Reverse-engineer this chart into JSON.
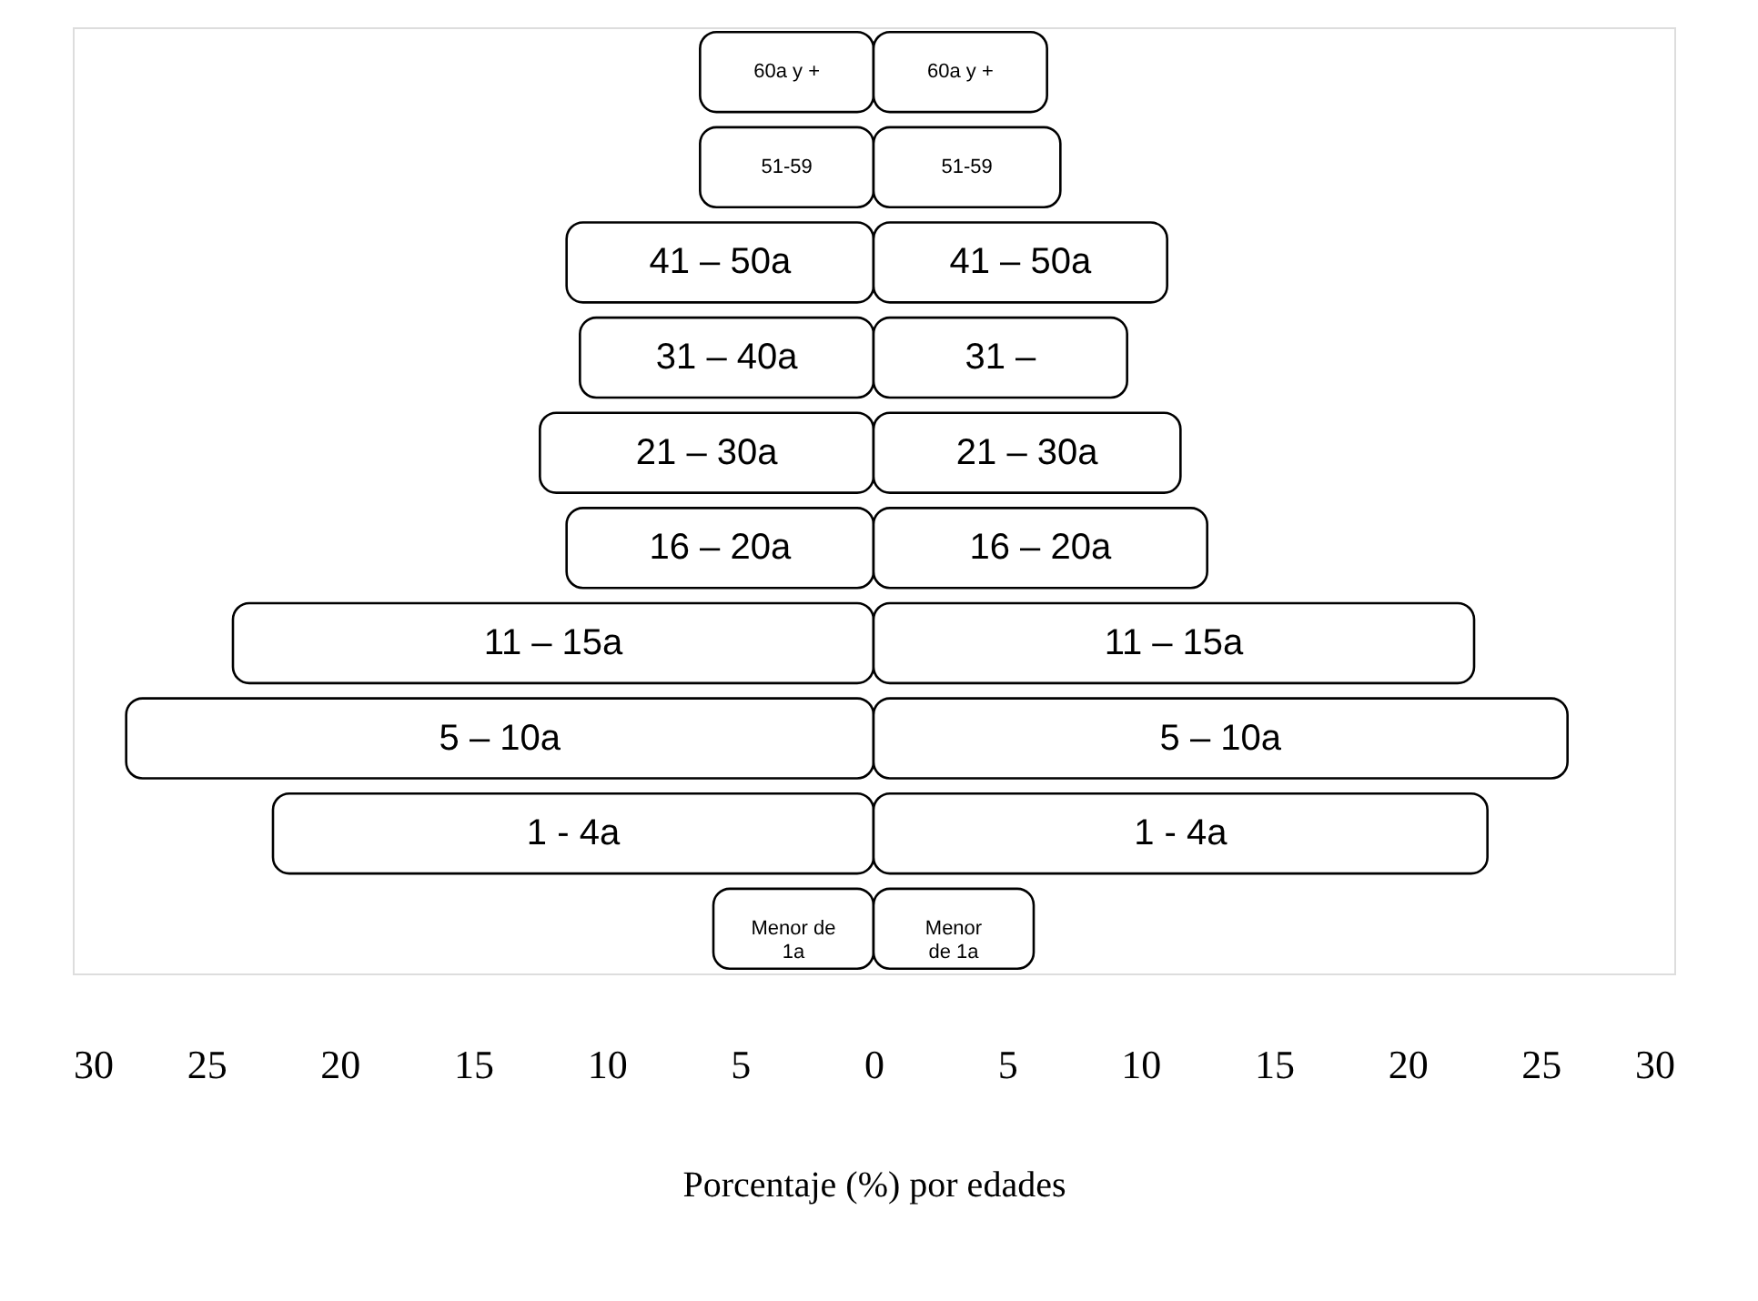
{
  "chart_data": {
    "type": "bar",
    "orientation": "horizontal",
    "stacked": true,
    "xlabel": "Porcentaje (%) por edades",
    "categories": [
      "60a y +",
      "51-59",
      "41 – 50a",
      "31 – 40a",
      "21 – 30a",
      "16 – 20a",
      "11 – 15a",
      "5 – 10a",
      "1 - 4a",
      "Menor de\n1a"
    ],
    "series": [
      {
        "color": "#ffffff",
        "values": [
          -6.5,
          -6.5,
          -11.5,
          -11,
          -12.5,
          -11.5,
          -24,
          -28,
          -22.5,
          -6
        ]
      },
      {
        "color": "#ffffff",
        "values": [
          6.5,
          7,
          11,
          9.5,
          11.5,
          12.5,
          22.5,
          26,
          23,
          6
        ]
      }
    ],
    "annotations": [
      "60a y +",
      "51-59",
      "41 – 50a",
      "31 –",
      "21 – 30a",
      "16 – 20a",
      "11 – 15a",
      "5 – 10a",
      "1 - 4a",
      "Menor\nde 1a"
    ],
    "xlim": [
      -30,
      30
    ],
    "xticks": [
      {
        "value": -30,
        "label": "30"
      },
      {
        "value": -25,
        "label": "25"
      },
      {
        "value": -20,
        "label": "20"
      },
      {
        "value": -15,
        "label": "15"
      },
      {
        "value": -10,
        "label": "10"
      },
      {
        "value": -5,
        "label": "5"
      },
      0,
      5,
      10,
      15,
      20,
      25,
      30
    ],
    "grid": false
  }
}
